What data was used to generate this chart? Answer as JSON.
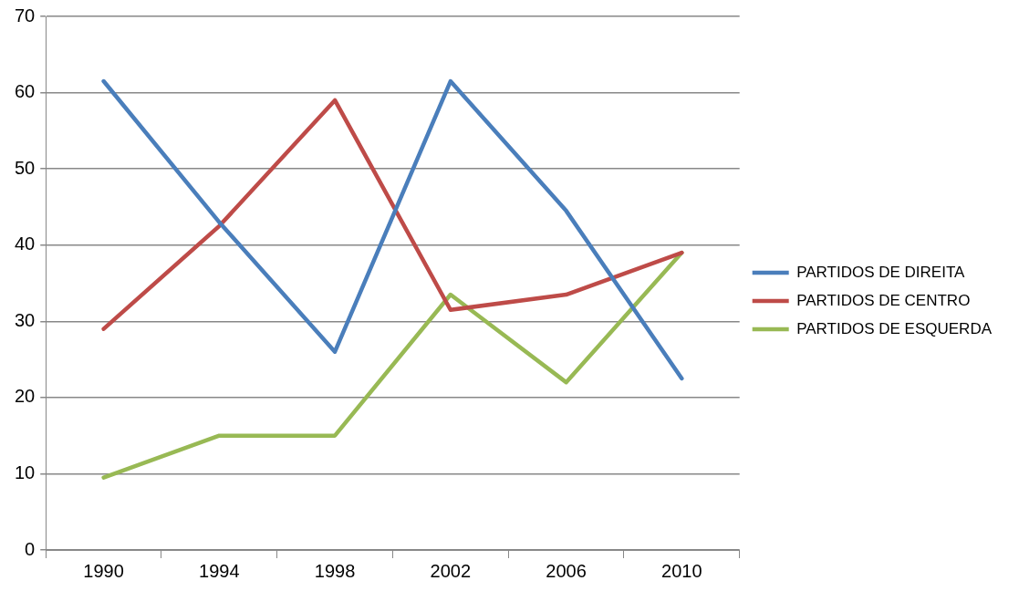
{
  "chart_data": {
    "type": "line",
    "categories": [
      "1990",
      "1994",
      "1998",
      "2002",
      "2006",
      "2010"
    ],
    "series": [
      {
        "name": "PARTIDOS DE DIREITA",
        "color": "#4a7ebb",
        "values": [
          61.5,
          43,
          26,
          61.5,
          44.5,
          22.5
        ]
      },
      {
        "name": "PARTIDOS DE CENTRO",
        "color": "#be4b48",
        "values": [
          29,
          42.5,
          59,
          31.5,
          33.5,
          39
        ]
      },
      {
        "name": "PARTIDOS DE ESQUERDA",
        "color": "#98b954",
        "values": [
          9.5,
          15,
          15,
          33.5,
          22,
          39
        ]
      }
    ],
    "ylim": [
      0,
      70
    ],
    "yticks": [
      0,
      10,
      20,
      30,
      40,
      50,
      60,
      70
    ],
    "grid": "y",
    "legend": "right",
    "marker": "none",
    "line_style": "solid"
  }
}
